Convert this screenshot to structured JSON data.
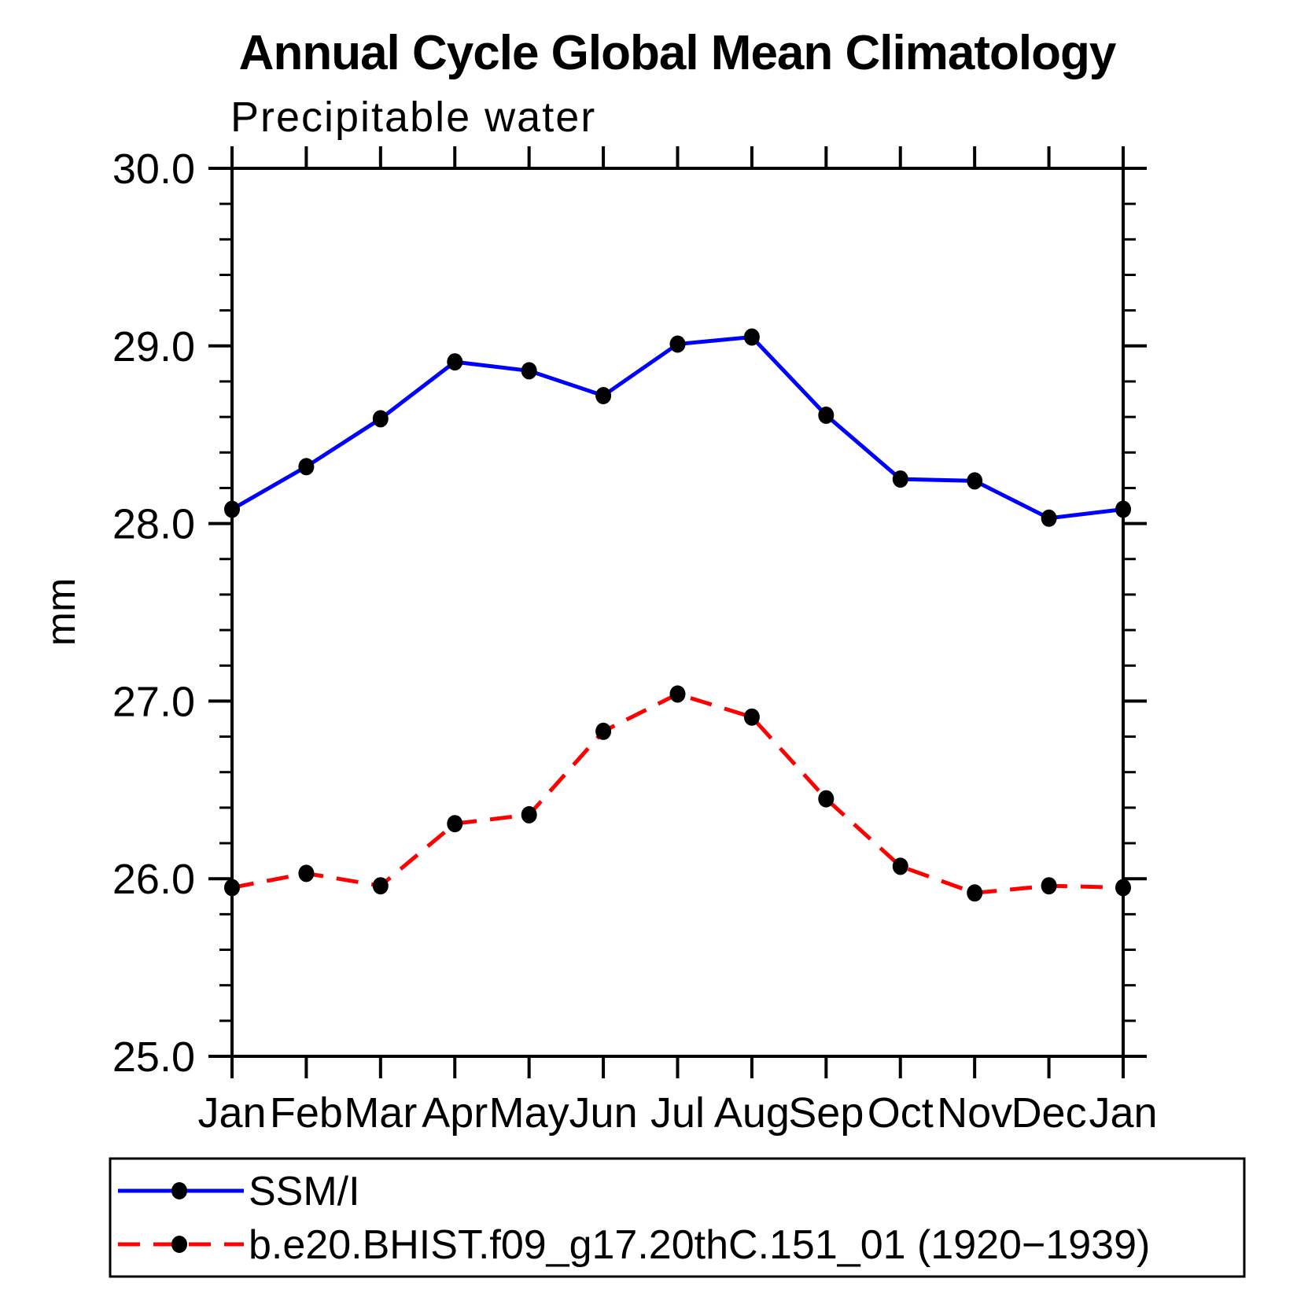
{
  "chart_data": {
    "type": "line",
    "title": "Annual Cycle Global Mean Climatology",
    "subtitle": "Precipitable water",
    "ylabel": "mm",
    "xlabel": "",
    "ylim": [
      25.0,
      30.0
    ],
    "ytick_major_step": 1.0,
    "ytick_minor_step": 0.2,
    "ytick_labels": [
      "25.0",
      "26.0",
      "27.0",
      "28.0",
      "29.0",
      "30.0"
    ],
    "categories": [
      "Jan",
      "Feb",
      "Mar",
      "Apr",
      "May",
      "Jun",
      "Jul",
      "Aug",
      "Sep",
      "Oct",
      "Nov",
      "Dec",
      "Jan"
    ],
    "grid": false,
    "legend_position": "bottom",
    "series": [
      {
        "name": "SSM/I",
        "color": "#0000ff",
        "line_style": "solid",
        "marker": "filled-circle",
        "marker_color": "#000000",
        "values": [
          28.08,
          28.32,
          28.59,
          28.91,
          28.86,
          28.72,
          29.01,
          29.05,
          28.61,
          28.25,
          28.24,
          28.03,
          28.08
        ]
      },
      {
        "name": "b.e20.BHIST.f09_g17.20thC.151_01 (1920−1939)",
        "color": "#ff0000",
        "line_style": "dashed",
        "marker": "filled-circle",
        "marker_color": "#000000",
        "values": [
          25.95,
          26.03,
          25.96,
          26.31,
          26.36,
          26.83,
          27.04,
          26.91,
          26.45,
          26.07,
          25.92,
          25.96,
          25.95
        ]
      }
    ]
  }
}
